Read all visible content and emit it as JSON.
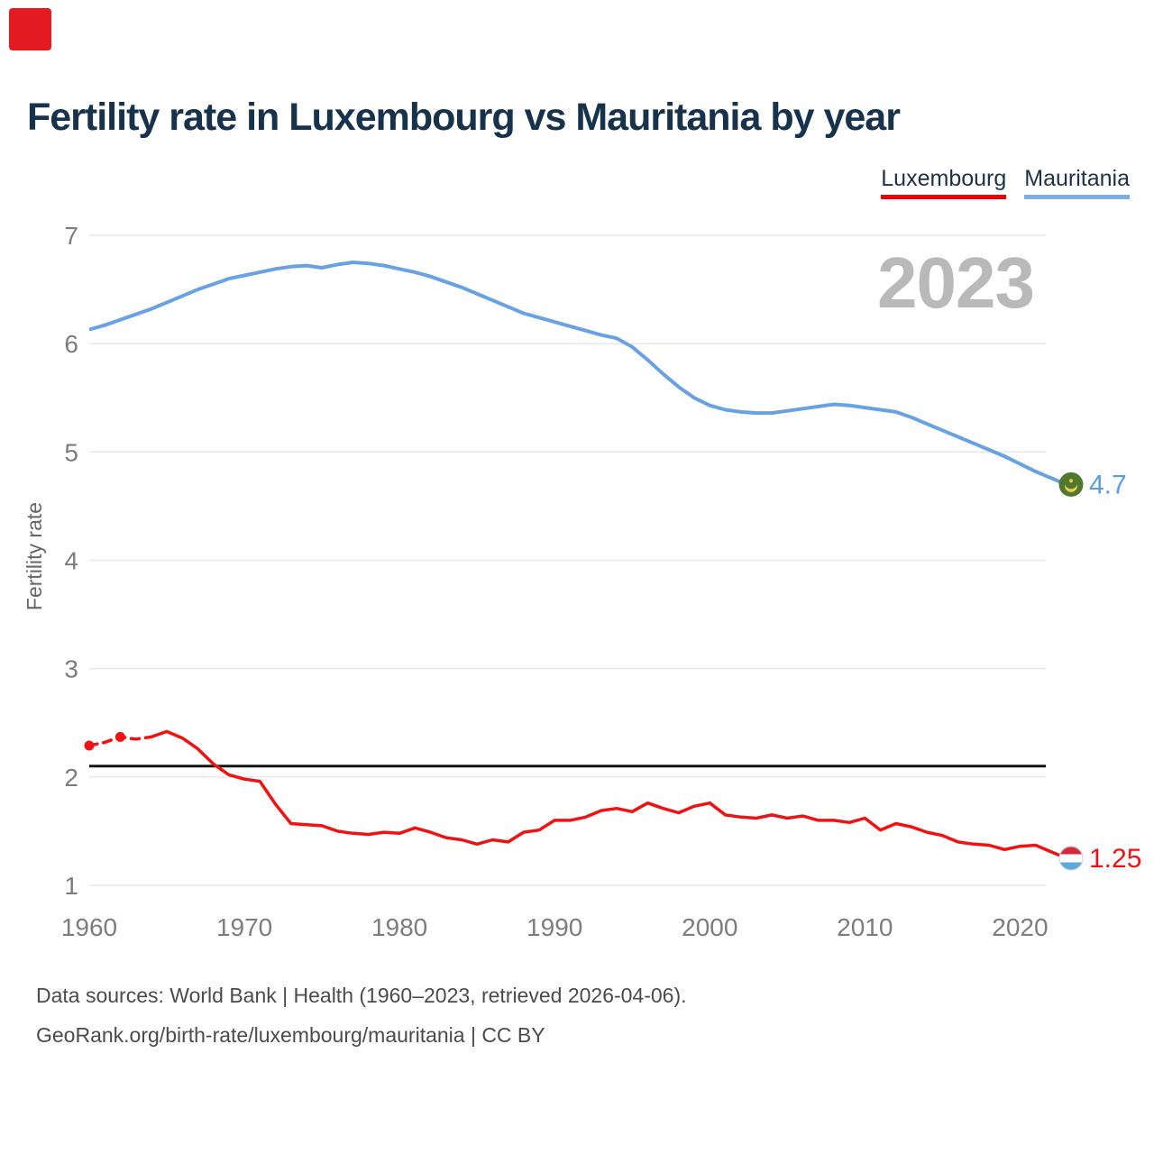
{
  "page": {
    "record_indicator_color": "#e41b23"
  },
  "title": "Fertility rate in Luxembourg vs Mauritania by year",
  "legend": [
    {
      "label": "Luxembourg",
      "underline_color": "#f40000"
    },
    {
      "label": "Mauritania",
      "underline_color": "#79b0e8"
    }
  ],
  "watermark": "2023",
  "source": {
    "line1": "Data sources: World Bank | Health (1960–2023, retrieved 2026-04-06).",
    "line2": "GeoRank.org/birth-rate/luxembourg/mauritania | CC BY"
  },
  "chart_data": {
    "type": "line",
    "title": "Fertility rate in Luxembourg vs Mauritania by year",
    "xlabel": "",
    "ylabel": "Fertility rate",
    "xlim": [
      1960,
      2023
    ],
    "ylim": [
      1,
      7
    ],
    "x_ticks": [
      1960,
      1970,
      1980,
      1990,
      2000,
      2010,
      2020
    ],
    "y_ticks": [
      1,
      2,
      3,
      4,
      5,
      6,
      7
    ],
    "grid": "horizontal",
    "grid_color": "#e9e9e9",
    "tick_color": "#7d7d7d",
    "reference_line": {
      "value": 2.1,
      "color": "#141414"
    },
    "years": [
      1960,
      1961,
      1962,
      1963,
      1964,
      1965,
      1966,
      1967,
      1968,
      1969,
      1970,
      1971,
      1972,
      1973,
      1974,
      1975,
      1976,
      1977,
      1978,
      1979,
      1980,
      1981,
      1982,
      1983,
      1984,
      1985,
      1986,
      1987,
      1988,
      1989,
      1990,
      1991,
      1992,
      1993,
      1994,
      1995,
      1996,
      1997,
      1998,
      1999,
      2000,
      2001,
      2002,
      2003,
      2004,
      2005,
      2006,
      2007,
      2008,
      2009,
      2010,
      2011,
      2012,
      2013,
      2014,
      2015,
      2016,
      2017,
      2018,
      2019,
      2020,
      2021,
      2022,
      2023
    ],
    "series": [
      {
        "name": "Mauritania",
        "color": "#68a2e3",
        "end_label": "4.7",
        "end_label_color": "#5d9ce2",
        "flag": {
          "type": "mauritania",
          "bg": "#52772e",
          "emblem": "#eace4c"
        },
        "values": [
          6.13,
          6.17,
          6.22,
          6.27,
          6.32,
          6.38,
          6.44,
          6.5,
          6.55,
          6.6,
          6.63,
          6.66,
          6.69,
          6.71,
          6.72,
          6.7,
          6.73,
          6.75,
          6.74,
          6.72,
          6.69,
          6.66,
          6.62,
          6.57,
          6.52,
          6.46,
          6.4,
          6.34,
          6.28,
          6.24,
          6.2,
          6.16,
          6.12,
          6.08,
          6.05,
          5.97,
          5.85,
          5.72,
          5.6,
          5.5,
          5.43,
          5.39,
          5.37,
          5.36,
          5.36,
          5.38,
          5.4,
          5.42,
          5.44,
          5.43,
          5.41,
          5.39,
          5.37,
          5.32,
          5.26,
          5.2,
          5.14,
          5.08,
          5.02,
          4.96,
          4.89,
          4.82,
          4.76,
          4.7
        ]
      },
      {
        "name": "Luxembourg",
        "color": "#f01212",
        "end_label": "1.25",
        "end_label_color": "#f01212",
        "dashed_until_year": 1964,
        "marker_years": [
          1960,
          1962
        ],
        "flag": {
          "type": "luxembourg",
          "stripes": [
            "#d6293b",
            "#ffffff",
            "#5fa8dc"
          ]
        },
        "values": [
          2.29,
          2.32,
          2.37,
          2.35,
          2.37,
          2.42,
          2.36,
          2.26,
          2.12,
          2.02,
          1.98,
          1.96,
          1.75,
          1.57,
          1.56,
          1.55,
          1.5,
          1.48,
          1.47,
          1.49,
          1.48,
          1.53,
          1.49,
          1.44,
          1.42,
          1.38,
          1.42,
          1.4,
          1.49,
          1.51,
          1.6,
          1.6,
          1.63,
          1.69,
          1.71,
          1.68,
          1.76,
          1.71,
          1.67,
          1.73,
          1.76,
          1.65,
          1.63,
          1.62,
          1.65,
          1.62,
          1.64,
          1.6,
          1.6,
          1.58,
          1.62,
          1.51,
          1.57,
          1.54,
          1.49,
          1.46,
          1.4,
          1.38,
          1.37,
          1.33,
          1.36,
          1.37,
          1.31,
          1.25
        ]
      }
    ]
  }
}
